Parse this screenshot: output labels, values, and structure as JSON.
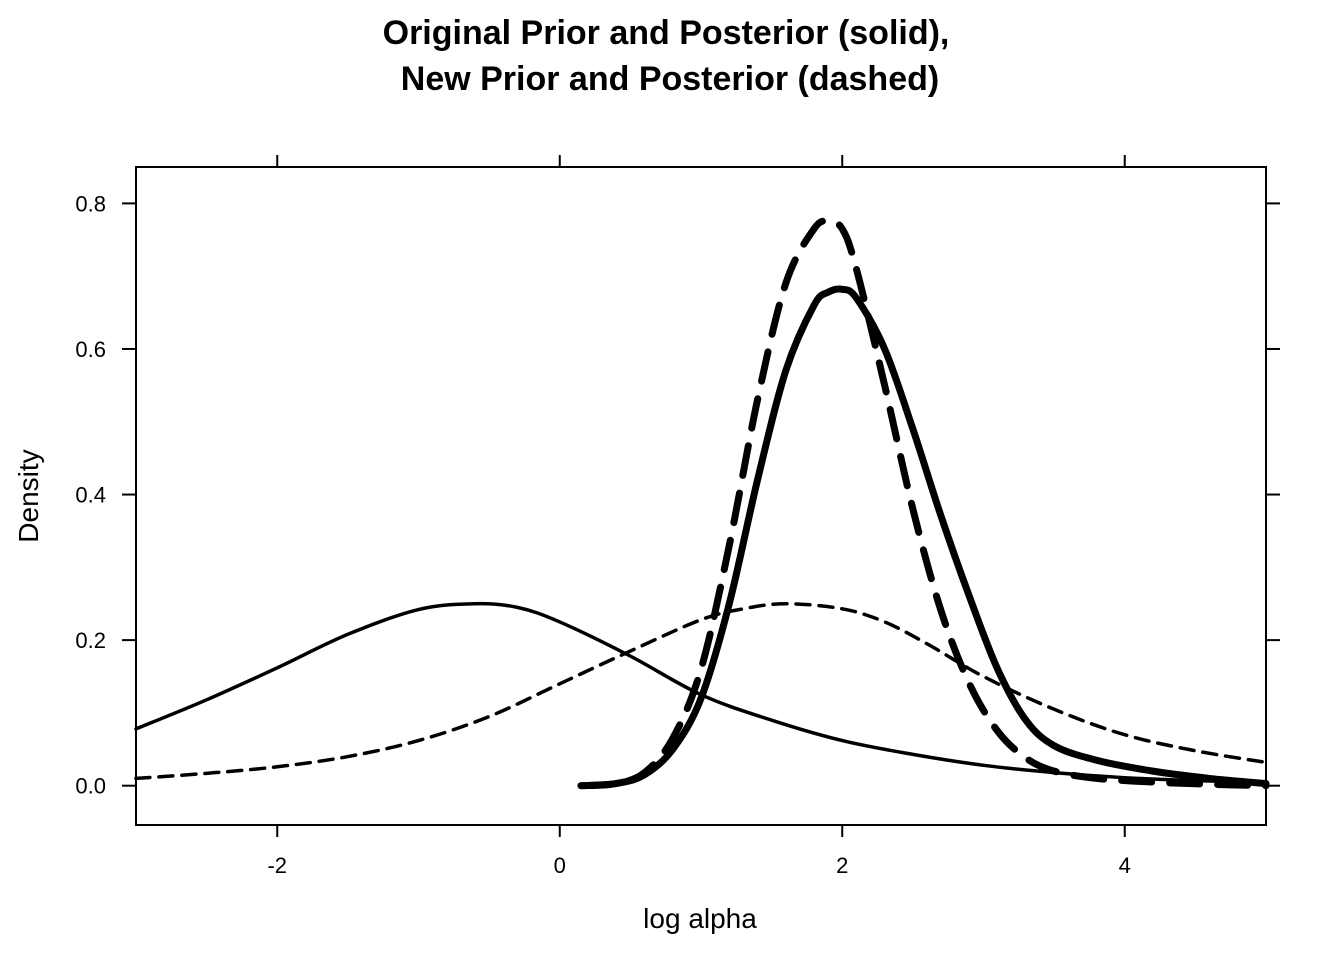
{
  "chart_data": {
    "type": "line",
    "title": [
      "Original Prior and Posterior (solid),",
      "New Prior and Posterior (dashed)"
    ],
    "xlabel": "log alpha",
    "ylabel": "Density",
    "xlim": [
      -3,
      5
    ],
    "ylim": [
      -0.054,
      0.85
    ],
    "xticks": [
      -2,
      0,
      2,
      4
    ],
    "xtick_labels": [
      "-2",
      "0",
      "2",
      "4"
    ],
    "yticks": [
      0.0,
      0.2,
      0.4,
      0.6,
      0.8
    ],
    "ytick_labels": [
      "0.0",
      "0.2",
      "0.4",
      "0.6",
      "0.8"
    ],
    "grid": false,
    "series": [
      {
        "style": "solid-thin",
        "x": [
          -3.0,
          -2.5,
          -2.0,
          -1.5,
          -1.0,
          -0.6,
          -0.3,
          0.0,
          0.5,
          1.0,
          1.5,
          2.0,
          2.5,
          3.0,
          3.5,
          4.0,
          4.5,
          5.0
        ],
        "y": [
          0.078,
          0.118,
          0.162,
          0.208,
          0.242,
          0.25,
          0.245,
          0.225,
          0.178,
          0.125,
          0.09,
          0.062,
          0.043,
          0.028,
          0.018,
          0.011,
          0.007,
          0.005
        ]
      },
      {
        "style": "dashed-thin",
        "x": [
          -3.0,
          -2.5,
          -2.0,
          -1.5,
          -1.0,
          -0.5,
          0.0,
          0.5,
          1.0,
          1.3,
          1.6,
          2.0,
          2.3,
          2.6,
          3.0,
          3.5,
          4.0,
          4.5,
          5.0
        ],
        "y": [
          0.01,
          0.017,
          0.026,
          0.04,
          0.062,
          0.095,
          0.14,
          0.185,
          0.228,
          0.243,
          0.25,
          0.243,
          0.225,
          0.195,
          0.15,
          0.105,
          0.07,
          0.048,
          0.032
        ]
      },
      {
        "style": "solid-thick",
        "x": [
          0.15,
          0.4,
          0.6,
          0.8,
          1.0,
          1.2,
          1.4,
          1.6,
          1.8,
          1.9,
          2.0,
          2.1,
          2.3,
          2.5,
          2.7,
          2.9,
          3.1,
          3.3,
          3.5,
          3.8,
          4.2,
          4.6,
          5.0
        ],
        "y": [
          0.0,
          0.003,
          0.015,
          0.05,
          0.12,
          0.25,
          0.42,
          0.57,
          0.66,
          0.678,
          0.682,
          0.67,
          0.6,
          0.49,
          0.37,
          0.26,
          0.16,
          0.09,
          0.055,
          0.035,
          0.02,
          0.01,
          0.003
        ]
      },
      {
        "style": "dashed-thick",
        "x": [
          0.15,
          0.4,
          0.6,
          0.8,
          1.0,
          1.2,
          1.4,
          1.6,
          1.8,
          1.9,
          2.0,
          2.1,
          2.3,
          2.5,
          2.7,
          2.9,
          3.1,
          3.3,
          3.5,
          3.8,
          4.2,
          4.6,
          5.0
        ],
        "y": [
          0.0,
          0.003,
          0.018,
          0.065,
          0.16,
          0.33,
          0.53,
          0.69,
          0.765,
          0.775,
          0.765,
          0.71,
          0.55,
          0.38,
          0.24,
          0.14,
          0.075,
          0.038,
          0.02,
          0.01,
          0.005,
          0.002,
          0.0
        ]
      }
    ]
  }
}
